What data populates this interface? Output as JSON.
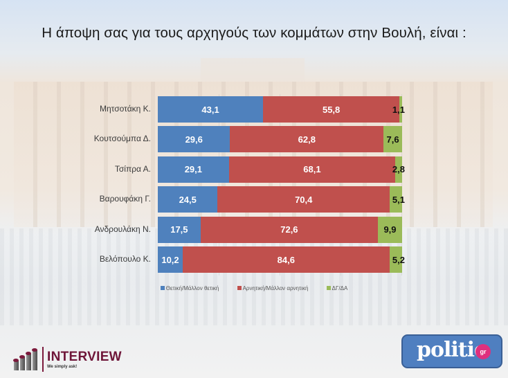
{
  "title": "Η άποψη σας για τους αρχηγούς των κομμάτων στην Βουλή,  είναι :",
  "colors": {
    "positive": "#4f81bd",
    "negative": "#c0504d",
    "dk": "#9bbb59"
  },
  "rows": [
    {
      "label": "Μητσοτάκη Κ.",
      "positive": "43,1",
      "negative": "55,8",
      "dk": "1,1"
    },
    {
      "label": "Κουτσούμπα Δ.",
      "positive": "29,6",
      "negative": "62,8",
      "dk": "7,6"
    },
    {
      "label": "Τσίπρα Α.",
      "positive": "29,1",
      "negative": "68,1",
      "dk": "2,8"
    },
    {
      "label": "Βαρουφάκη Γ.",
      "positive": "24,5",
      "negative": "70,4",
      "dk": "5,1"
    },
    {
      "label": "Ανδρουλάκη Ν.",
      "positive": "17,5",
      "negative": "72,6",
      "dk": "9,9"
    },
    {
      "label": "Βελόπουλο Κ.",
      "positive": "10,2",
      "negative": "84,6",
      "dk": "5,2"
    }
  ],
  "legend": {
    "positive": "Θετική/Μάλλον θετική",
    "negative": "Αρνητική/Μάλλον αρνητική",
    "dk": "ΔΓ/ΔΑ"
  },
  "logos": {
    "interview_name": "INTERVIEW",
    "interview_tagline": "We simply ask!",
    "politic_name": "politic",
    "politic_suffix": "gr"
  },
  "chart_data": {
    "type": "bar",
    "orientation": "horizontal",
    "stacked": true,
    "percent_stacked": true,
    "title": "Η άποψη σας για τους αρχηγούς των κομμάτων στην Βουλή,  είναι :",
    "categories": [
      "Μητσοτάκη Κ.",
      "Κουτσούμπα Δ.",
      "Τσίπρα Α.",
      "Βαρουφάκη Γ.",
      "Ανδρουλάκη Ν.",
      "Βελόπουλο Κ."
    ],
    "series": [
      {
        "name": "Θετική/Μάλλον θετική",
        "color": "#4f81bd",
        "values": [
          43.1,
          29.6,
          29.1,
          24.5,
          17.5,
          10.2
        ]
      },
      {
        "name": "Αρνητική/Μάλλον αρνητική",
        "color": "#c0504d",
        "values": [
          55.8,
          62.8,
          68.1,
          70.4,
          72.6,
          84.6
        ]
      },
      {
        "name": "ΔΓ/ΔΑ",
        "color": "#9bbb59",
        "values": [
          1.1,
          7.6,
          2.8,
          5.1,
          9.9,
          5.2
        ]
      }
    ],
    "xlabel": "",
    "ylabel": "",
    "xlim": [
      0,
      100
    ],
    "grid": true,
    "legend_position": "bottom",
    "data_labels": true
  }
}
